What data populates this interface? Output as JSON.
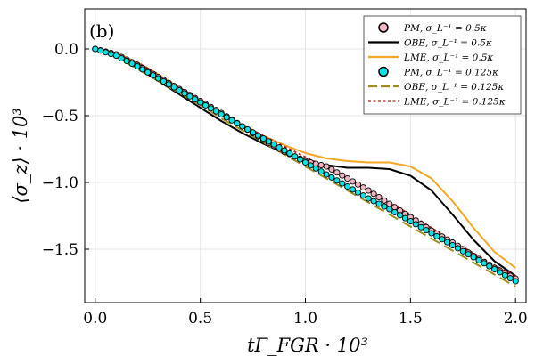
{
  "chart_data": {
    "type": "line",
    "panel_label": "(b)",
    "xlabel": "tΓ_FGR · 10³",
    "ylabel": "⟨σ_z⟩ · 10³",
    "xlim": [
      -0.05,
      2.05
    ],
    "ylim": [
      -1.9,
      0.3
    ],
    "xticks": [
      0.0,
      0.5,
      1.0,
      1.5,
      2.0
    ],
    "xtick_labels": [
      "0.0",
      "0.5",
      "1.0",
      "1.5",
      "2.0"
    ],
    "yticks": [
      0.0,
      -0.5,
      -1.0,
      -1.5
    ],
    "ytick_labels": [
      "0.0",
      "−0.5",
      "−1.0",
      "−1.5"
    ],
    "grid": true,
    "legend_position": "top-right",
    "series": [
      {
        "name": "PM, σ_L⁻¹ = 0.5κ",
        "style": "markers",
        "color": "#f4b6c2",
        "x": [
          0.0,
          0.1,
          0.2,
          0.3,
          0.4,
          0.5,
          0.6,
          0.7,
          0.8,
          0.9,
          1.0,
          1.1,
          1.2,
          1.3,
          1.4,
          1.5,
          1.6,
          1.7,
          1.8,
          1.9,
          2.0
        ],
        "y": [
          0.0,
          -0.04,
          -0.12,
          -0.21,
          -0.3,
          -0.39,
          -0.48,
          -0.58,
          -0.68,
          -0.77,
          -0.84,
          -0.88,
          -0.97,
          -1.06,
          -1.16,
          -1.26,
          -1.36,
          -1.45,
          -1.55,
          -1.64,
          -1.72
        ]
      },
      {
        "name": "OBE, σ_L⁻¹ = 0.5κ",
        "style": "solid",
        "color": "#000000",
        "x": [
          0.0,
          0.1,
          0.2,
          0.3,
          0.4,
          0.5,
          0.6,
          0.7,
          0.8,
          0.9,
          1.0,
          1.1,
          1.2,
          1.3,
          1.4,
          1.5,
          1.6,
          1.7,
          1.8,
          1.9,
          2.0
        ],
        "y": [
          0.0,
          -0.05,
          -0.14,
          -0.24,
          -0.34,
          -0.44,
          -0.54,
          -0.63,
          -0.71,
          -0.78,
          -0.84,
          -0.87,
          -0.89,
          -0.89,
          -0.9,
          -0.95,
          -1.06,
          -1.24,
          -1.43,
          -1.59,
          -1.7
        ]
      },
      {
        "name": "LME, σ_L⁻¹ = 0.5κ",
        "style": "solid",
        "color": "#f5a623",
        "x": [
          0.0,
          0.1,
          0.2,
          0.3,
          0.4,
          0.5,
          0.6,
          0.7,
          0.8,
          0.9,
          1.0,
          1.1,
          1.2,
          1.3,
          1.4,
          1.5,
          1.6,
          1.7,
          1.8,
          1.9,
          2.0
        ],
        "y": [
          0.0,
          -0.03,
          -0.1,
          -0.19,
          -0.29,
          -0.39,
          -0.49,
          -0.57,
          -0.65,
          -0.72,
          -0.78,
          -0.82,
          -0.84,
          -0.85,
          -0.85,
          -0.88,
          -0.97,
          -1.14,
          -1.34,
          -1.52,
          -1.64
        ]
      },
      {
        "name": "PM, σ_L⁻¹ = 0.125κ",
        "style": "markers",
        "color": "#00e5e5",
        "x": [
          0.0,
          0.1,
          0.2,
          0.3,
          0.4,
          0.5,
          0.6,
          0.7,
          0.8,
          0.9,
          1.0,
          1.1,
          1.2,
          1.3,
          1.4,
          1.5,
          1.6,
          1.7,
          1.8,
          1.9,
          2.0
        ],
        "y": [
          0.0,
          -0.05,
          -0.13,
          -0.22,
          -0.31,
          -0.4,
          -0.49,
          -0.58,
          -0.67,
          -0.76,
          -0.85,
          -0.94,
          -1.03,
          -1.12,
          -1.2,
          -1.29,
          -1.38,
          -1.47,
          -1.56,
          -1.65,
          -1.74
        ]
      },
      {
        "name": "OBE, σ_L⁻¹ = 0.125κ",
        "style": "dashed",
        "color": "#a08c1e",
        "x": [
          0.0,
          0.1,
          0.2,
          0.3,
          0.4,
          0.5,
          0.6,
          0.7,
          0.8,
          0.9,
          1.0,
          1.1,
          1.2,
          1.3,
          1.4,
          1.5,
          1.6,
          1.7,
          1.8,
          1.9,
          2.0
        ],
        "y": [
          0.0,
          -0.06,
          -0.15,
          -0.24,
          -0.33,
          -0.42,
          -0.52,
          -0.61,
          -0.7,
          -0.79,
          -0.88,
          -0.97,
          -1.06,
          -1.15,
          -1.24,
          -1.33,
          -1.42,
          -1.51,
          -1.6,
          -1.69,
          -1.78
        ]
      },
      {
        "name": "LME, σ_L⁻¹ = 0.125κ",
        "style": "dotted",
        "color": "#b22222",
        "x": [
          0.0,
          0.1,
          0.2,
          0.3,
          0.4,
          0.5,
          0.6,
          0.7,
          0.8,
          0.9,
          1.0,
          1.1,
          1.2,
          1.3,
          1.4,
          1.5,
          1.6,
          1.7,
          1.8,
          1.9,
          2.0
        ],
        "y": [
          0.0,
          -0.03,
          -0.1,
          -0.19,
          -0.29,
          -0.38,
          -0.48,
          -0.57,
          -0.65,
          -0.73,
          -0.81,
          -0.89,
          -0.97,
          -1.06,
          -1.15,
          -1.24,
          -1.34,
          -1.44,
          -1.53,
          -1.62,
          -1.7
        ]
      }
    ]
  }
}
